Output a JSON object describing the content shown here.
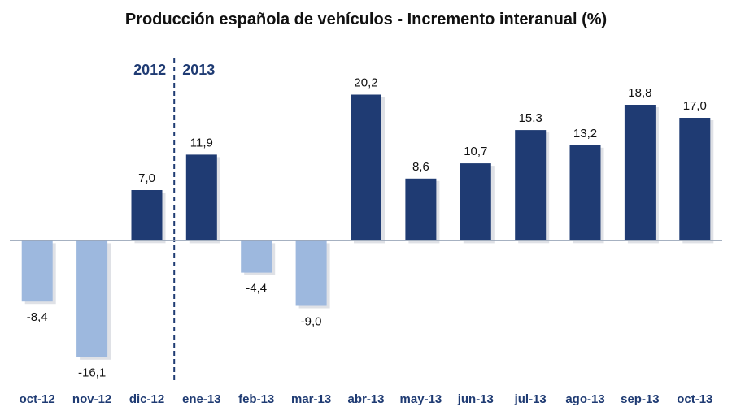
{
  "chart_data": {
    "type": "bar",
    "title": "Producción española de vehículos - Incremento interanual (%)",
    "xlabel": "",
    "ylabel": "",
    "categories": [
      "oct-12",
      "nov-12",
      "dic-12",
      "ene-13",
      "feb-13",
      "mar-13",
      "abr-13",
      "may-13",
      "jun-13",
      "jul-13",
      "ago-13",
      "sep-13",
      "oct-13"
    ],
    "values": [
      -8.4,
      -16.1,
      7.0,
      11.9,
      -4.4,
      -9.0,
      20.2,
      8.6,
      10.7,
      15.3,
      13.2,
      18.8,
      17.0
    ],
    "value_labels": [
      "-8,4",
      "-16,1",
      "7,0",
      "11,9",
      "-4,4",
      "-9,0",
      "20,2",
      "8,6",
      "10,7",
      "15,3",
      "13,2",
      "18,8",
      "17,0"
    ],
    "ylim": [
      -19.5,
      24.3
    ],
    "grid": false,
    "annotations": {
      "year_left": "2012",
      "year_right": "2013",
      "divider_after_category": "dic-12"
    },
    "colors": {
      "positive": "#1f3b73",
      "negative": "#9db8de",
      "axis_text": "#1f3b73",
      "baseline": "#9aa6b8",
      "divider": "#1f3b73"
    }
  }
}
